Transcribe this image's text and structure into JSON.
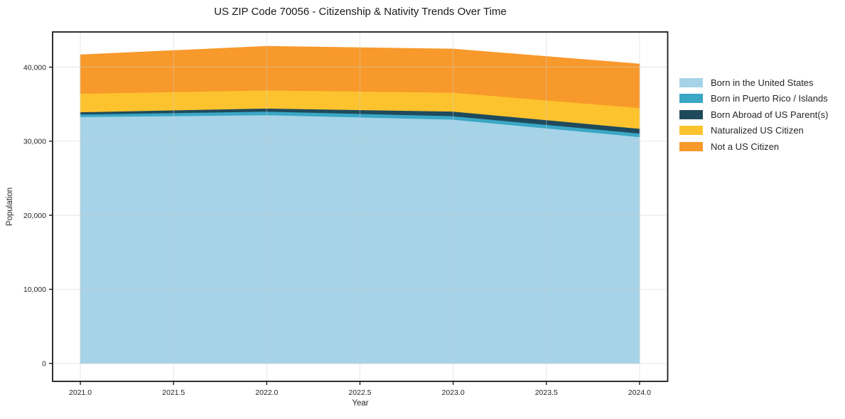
{
  "chart_data": {
    "type": "area",
    "stacked": true,
    "title": "US ZIP Code 70056 - Citizenship & Nativity Trends Over Time",
    "xlabel": "Year",
    "ylabel": "Population",
    "x": [
      2021,
      2022,
      2023,
      2024
    ],
    "series": [
      {
        "name": "Born in the United States",
        "color": "#a6d3e8",
        "values": [
          33300,
          33550,
          32950,
          30600
        ]
      },
      {
        "name": "Born in Puerto Rico / Islands",
        "color": "#3aa7c5",
        "values": [
          350,
          480,
          470,
          480
        ]
      },
      {
        "name": "Born Abroad of US Parent(s)",
        "color": "#1f4a5c",
        "values": [
          300,
          420,
          620,
          640
        ]
      },
      {
        "name": "Naturalized US Citizen",
        "color": "#fdc32e",
        "values": [
          2500,
          2450,
          2550,
          2800
        ]
      },
      {
        "name": "Not a US Citizen",
        "color": "#f8992b",
        "values": [
          5200,
          5900,
          5850,
          5900
        ]
      }
    ],
    "xlim": [
      2020.851,
      2024.151
    ],
    "ylim": [
      -2430,
      44750
    ],
    "x_ticks": [
      2021.0,
      2021.5,
      2022.0,
      2022.5,
      2023.0,
      2023.5,
      2024.0
    ],
    "x_tick_labels": [
      "2021.0",
      "2021.5",
      "2022.0",
      "2022.5",
      "2023.0",
      "2023.5",
      "2024.0"
    ],
    "y_ticks": [
      0,
      10000,
      20000,
      30000,
      40000
    ],
    "y_tick_labels": [
      "0",
      "10,000",
      "20,000",
      "30,000",
      "40,000"
    ],
    "grid": true,
    "legend_position": "right",
    "colors": {
      "spine": "#1a1a1a",
      "grid": "#cfcfcf",
      "tick_text": "#262626",
      "background": "#ffffff"
    }
  }
}
